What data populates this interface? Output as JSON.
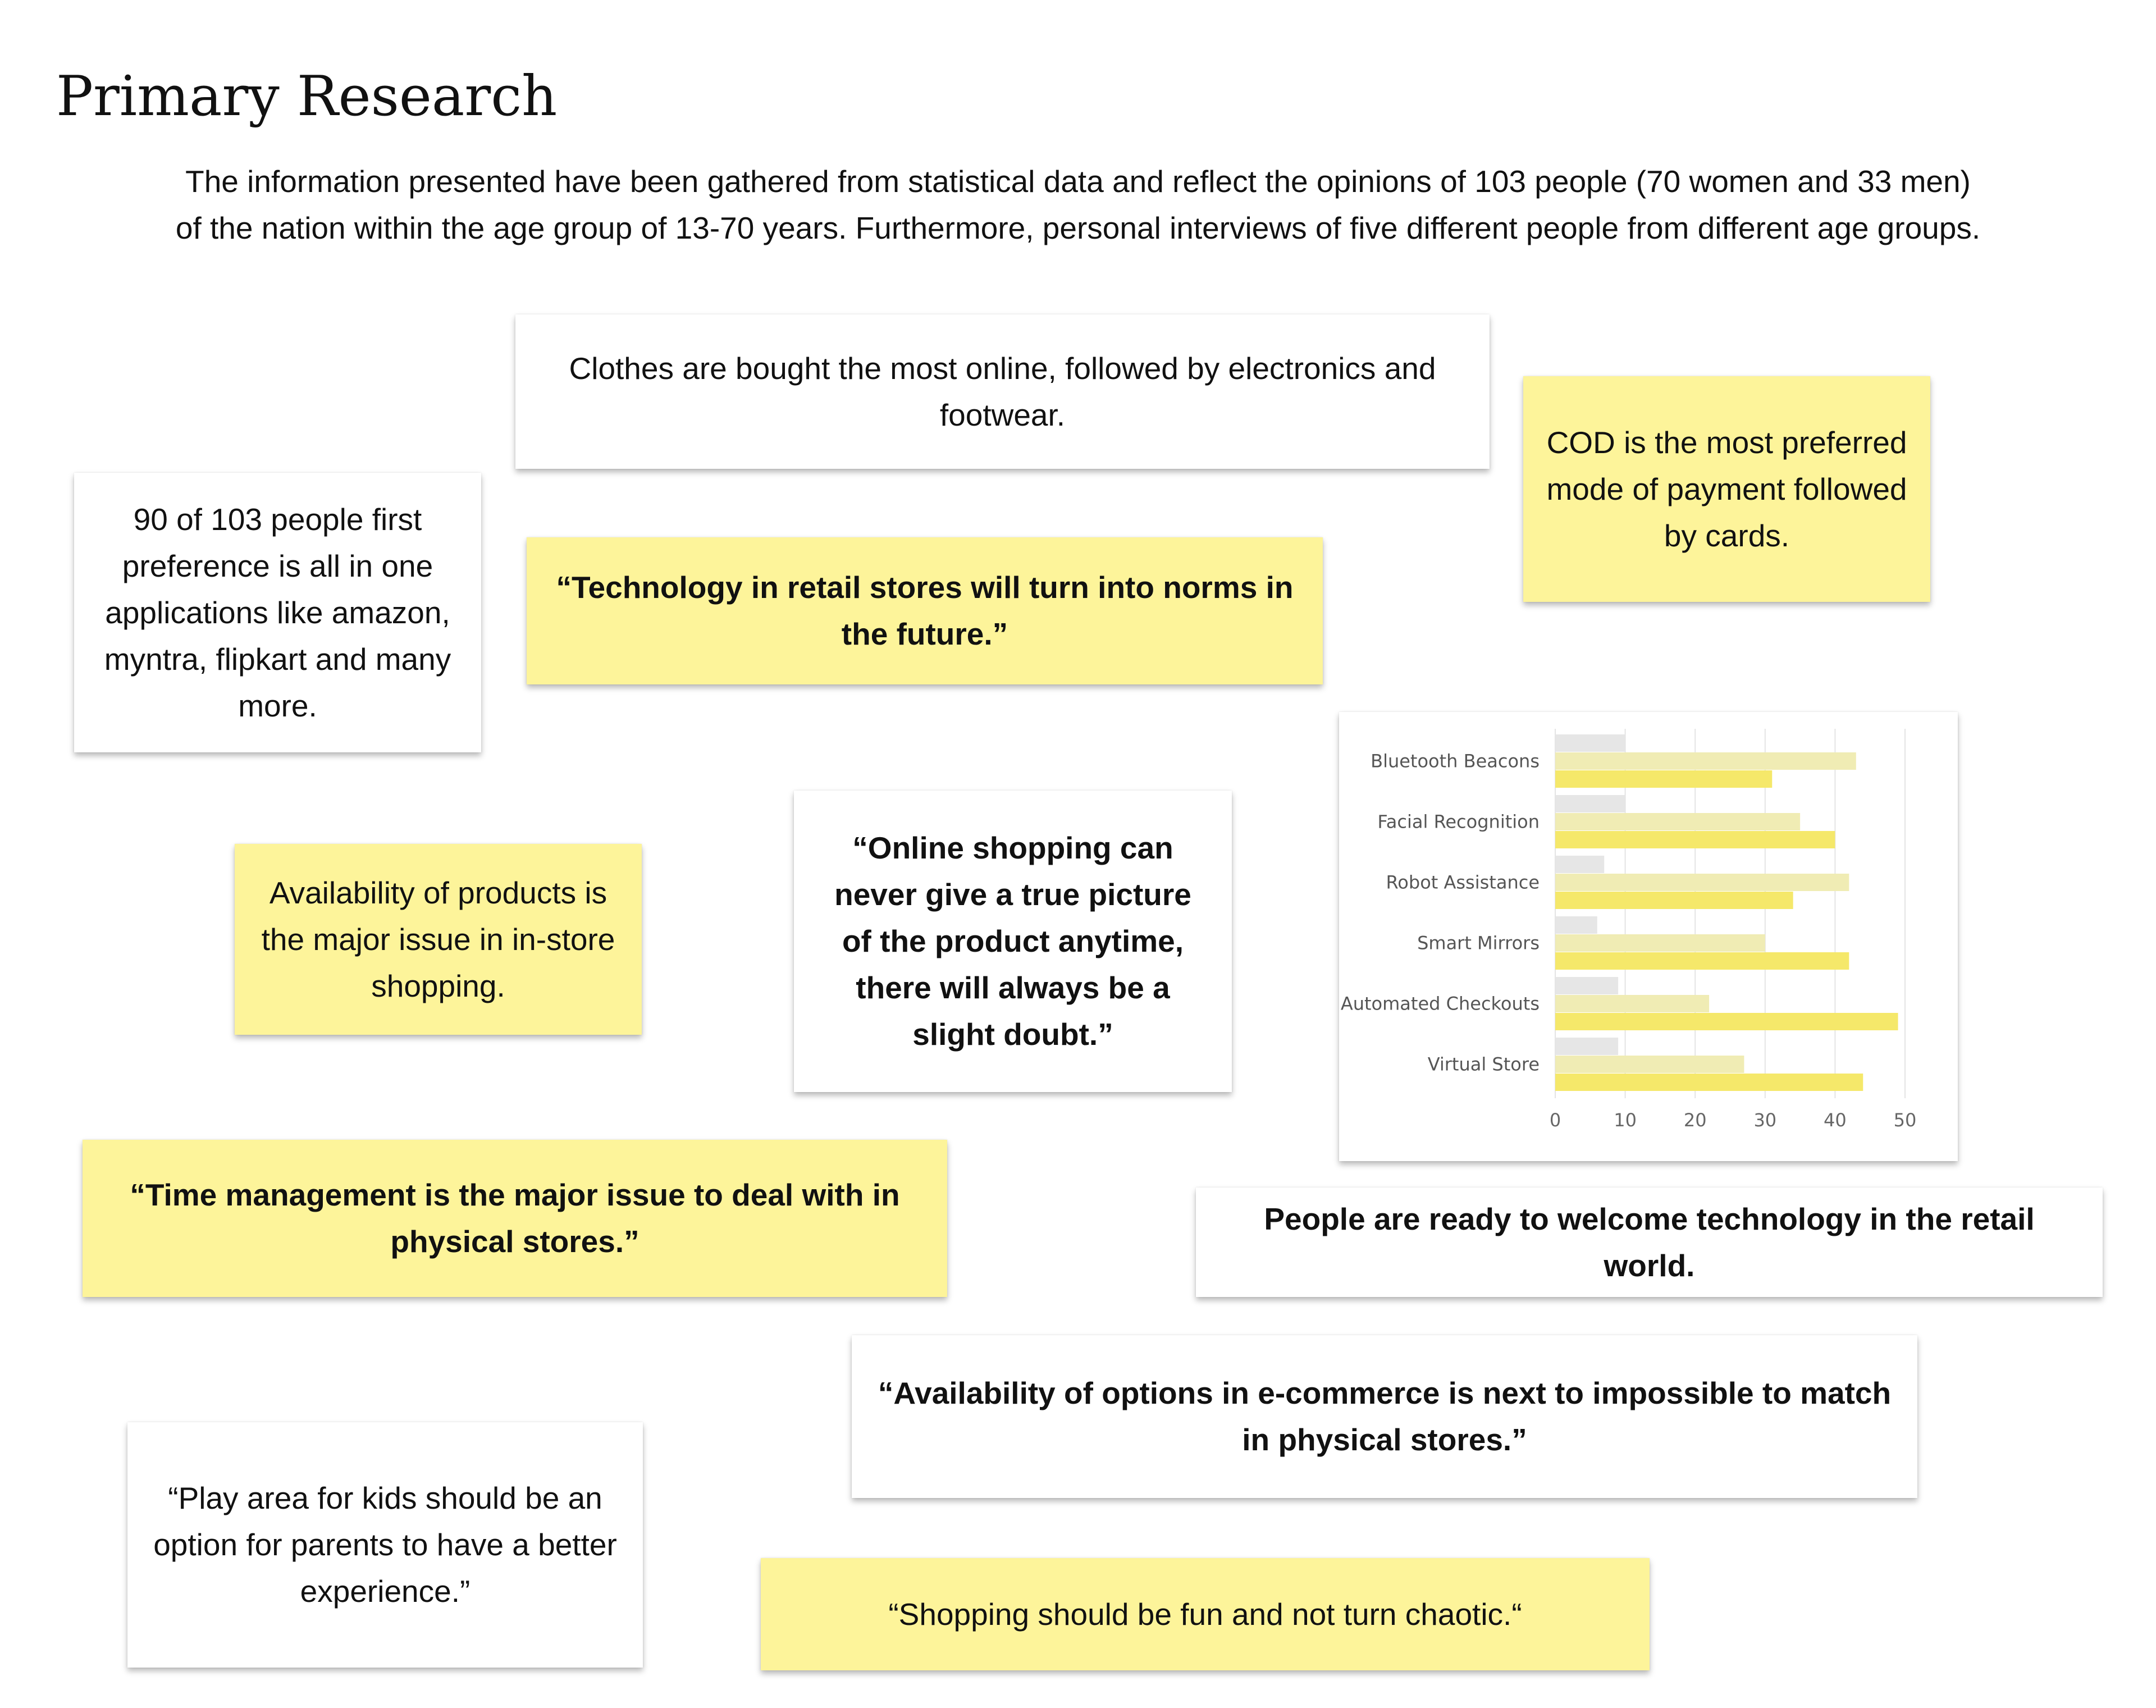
{
  "page": {
    "title": "Primary Research",
    "intro_line1": "The information presented have been gathered from statistical data and reflect the opinions of 103 people (70 women and 33 men)",
    "intro_line2": "of the nation within the age group of 13-70 years. Furthermore, personal interviews of five different people from different age groups."
  },
  "notes": {
    "clothes": "Clothes are bought the most online, followed by electronics and footwear.",
    "cod": "COD is the most preferred mode of payment followed by cards.",
    "all_in_one": "90 of 103 people first preference is all in one applications like amazon, myntra, flipkart and many more.",
    "technology_norms": "“Technology in retail stores will turn into norms in the future.”",
    "availability_products": "Availability of products is the major issue in in-store shopping.",
    "online_doubt": "“Online shopping can never give a true picture of the product anytime, there will always be a slight doubt.”",
    "time_management": "“Time management is the major issue to deal with in physical stores.”",
    "welcome_technology": "People are ready to welcome technology in the retail world.",
    "options_ecommerce": "“Availability of options in e-commerce is next to impossible to match in physical stores.”",
    "play_area": "“Play area for kids should be an option for parents to have a better experience.”",
    "shopping_fun": "“Shopping should be fun and not turn chaotic.“"
  },
  "colors": {
    "sticky_yellow": "#fdf49a",
    "series_gray": "#e6e6e6",
    "series_pale": "#f0ecb4",
    "series_yellow": "#f5e86a"
  },
  "chart_data": {
    "type": "bar",
    "orientation": "horizontal",
    "categories": [
      "Bluetooth Beacons",
      "Facial Recognition",
      "Robot Assistance",
      "Smart Mirrors",
      "Automated Checkouts",
      "Virtual Store"
    ],
    "series": [
      {
        "values": [
          10,
          10,
          7,
          6,
          9,
          9
        ]
      },
      {
        "values": [
          43,
          35,
          42,
          30,
          22,
          27
        ]
      },
      {
        "values": [
          31,
          40,
          34,
          42,
          49,
          44
        ]
      }
    ],
    "x_ticks": [
      0,
      10,
      20,
      30,
      40,
      50
    ],
    "xlim": [
      0,
      50
    ],
    "grid": true,
    "legend": "none"
  }
}
